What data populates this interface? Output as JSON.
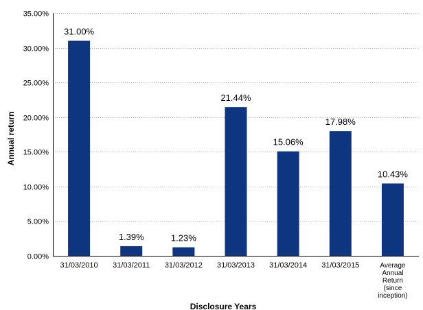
{
  "chart_data": {
    "type": "bar",
    "title": "",
    "xlabel": "Disclosure Years",
    "ylabel": "Annual return",
    "ylim": [
      0,
      35
    ],
    "yticks": [
      "0.00%",
      "5.00%",
      "10.00%",
      "15.00%",
      "20.00%",
      "25.00%",
      "30.00%",
      "35.00%"
    ],
    "ytick_values": [
      0,
      5,
      10,
      15,
      20,
      25,
      30,
      35
    ],
    "grid": "horizontal dotted",
    "legend": "none",
    "bar_color": "#0D3580",
    "categories": [
      "31/03/2010",
      "31/03/2011",
      "31/03/2012",
      "31/03/2013",
      "31/03/2014",
      "31/03/2015",
      "Average Annual Return (since inception)"
    ],
    "category_label_lines": [
      [
        "31/03/2010"
      ],
      [
        "31/03/2011"
      ],
      [
        "31/03/2012"
      ],
      [
        "31/03/2013"
      ],
      [
        "31/03/2014"
      ],
      [
        "31/03/2015"
      ],
      [
        "Average",
        "Annual",
        "Return",
        "(since",
        "inception)"
      ]
    ],
    "values": [
      31.0,
      1.39,
      1.23,
      21.44,
      15.06,
      17.98,
      10.43
    ],
    "data_labels": [
      "31.00%",
      "1.39%",
      "1.23%",
      "21.44%",
      "15.06%",
      "17.98%",
      "10.43%"
    ]
  }
}
